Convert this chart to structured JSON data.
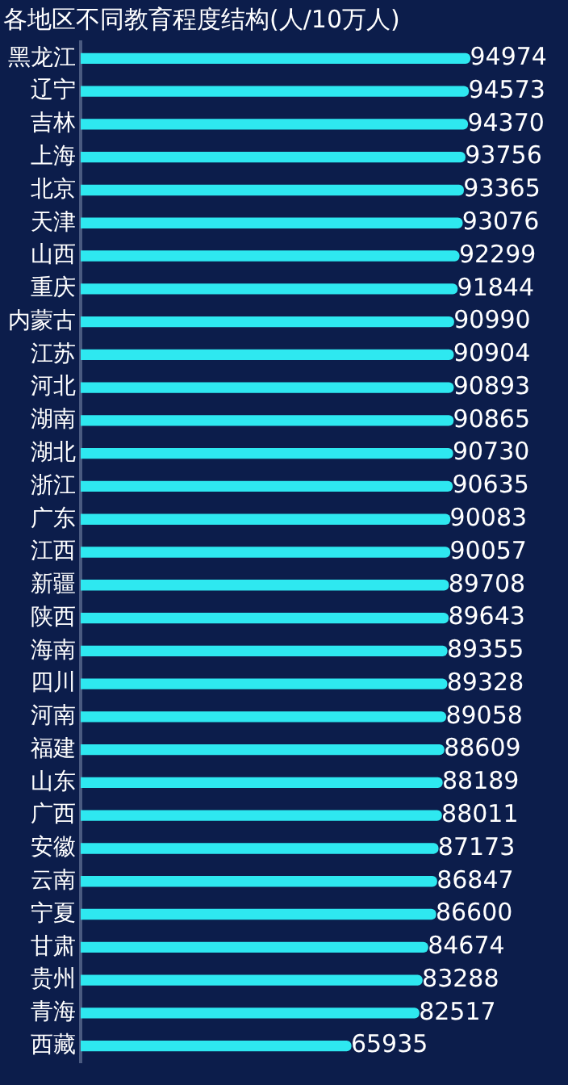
{
  "chart_data": {
    "type": "bar",
    "orientation": "horizontal",
    "title": "各地区不同教育程度结构(人/10万人)",
    "categories": [
      "黑龙江",
      "辽宁",
      "吉林",
      "上海",
      "北京",
      "天津",
      "山西",
      "重庆",
      "内蒙古",
      "江苏",
      "河北",
      "湖南",
      "湖北",
      "浙江",
      "广东",
      "江西",
      "新疆",
      "陕西",
      "海南",
      "四川",
      "河南",
      "福建",
      "山东",
      "广西",
      "安徽",
      "云南",
      "宁夏",
      "甘肃",
      "贵州",
      "青海",
      "西藏"
    ],
    "values": [
      94974,
      94573,
      94370,
      93756,
      93365,
      93076,
      92299,
      91844,
      90990,
      90904,
      90893,
      90865,
      90730,
      90635,
      90083,
      90057,
      89708,
      89643,
      89355,
      89328,
      89058,
      88609,
      88189,
      88011,
      87173,
      86847,
      86600,
      84674,
      83288,
      82517,
      65935
    ],
    "color": "#2ee8f0",
    "data_labels": true,
    "grid": false,
    "legend": false,
    "tick_labels": "y"
  }
}
